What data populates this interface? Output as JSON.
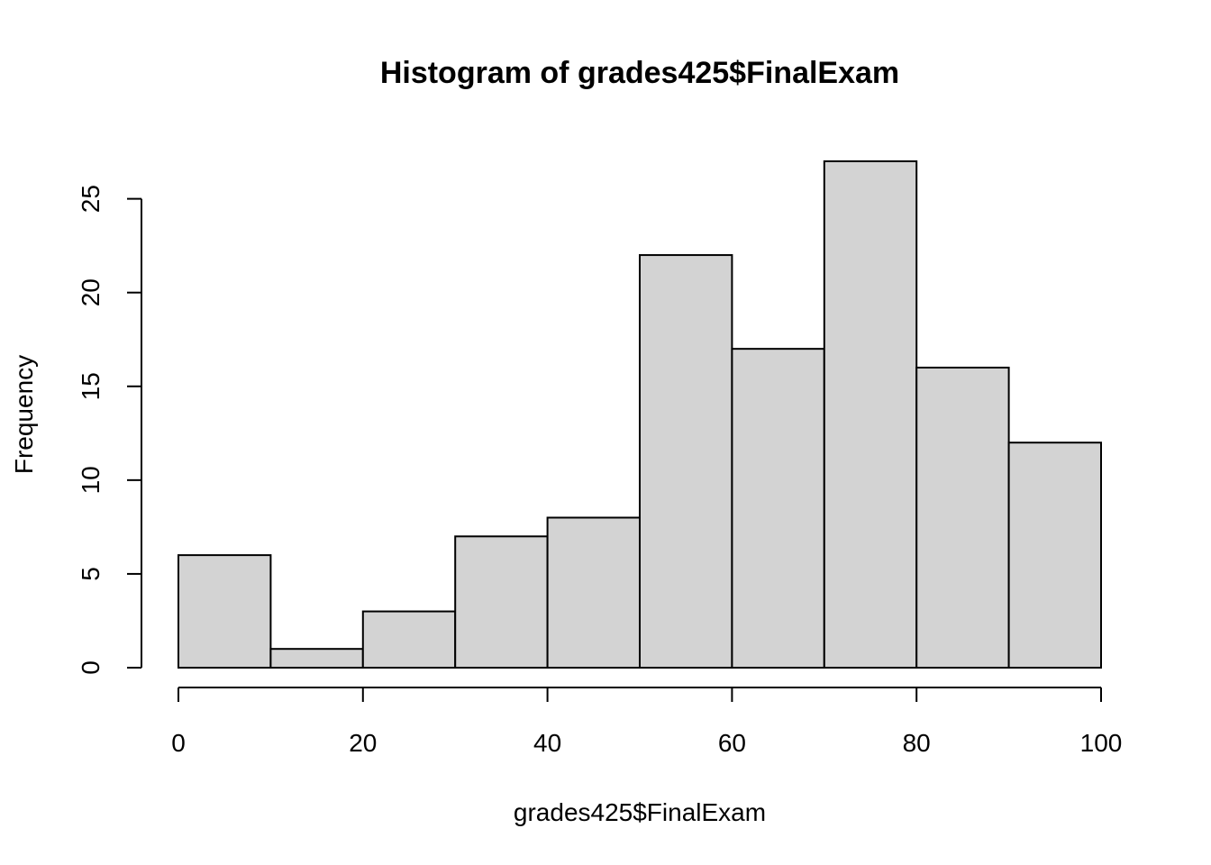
{
  "chart_data": {
    "type": "bar",
    "title": "Histogram of grades425$FinalExam",
    "xlabel": "grades425$FinalExam",
    "ylabel": "Frequency",
    "bins": [
      {
        "start": 0,
        "end": 10,
        "count": 6
      },
      {
        "start": 10,
        "end": 20,
        "count": 1
      },
      {
        "start": 20,
        "end": 30,
        "count": 3
      },
      {
        "start": 30,
        "end": 40,
        "count": 7
      },
      {
        "start": 40,
        "end": 50,
        "count": 8
      },
      {
        "start": 50,
        "end": 60,
        "count": 22
      },
      {
        "start": 60,
        "end": 70,
        "count": 17
      },
      {
        "start": 70,
        "end": 80,
        "count": 27
      },
      {
        "start": 80,
        "end": 90,
        "count": 16
      },
      {
        "start": 90,
        "end": 100,
        "count": 12
      }
    ],
    "x_ticks": [
      0,
      20,
      40,
      60,
      80,
      100
    ],
    "y_ticks": [
      0,
      5,
      10,
      15,
      20,
      25
    ],
    "xlim": [
      0,
      100
    ],
    "ylim": [
      0,
      27
    ],
    "grid": false,
    "bar_color": "#d3d3d3",
    "border_color": "#000000"
  }
}
